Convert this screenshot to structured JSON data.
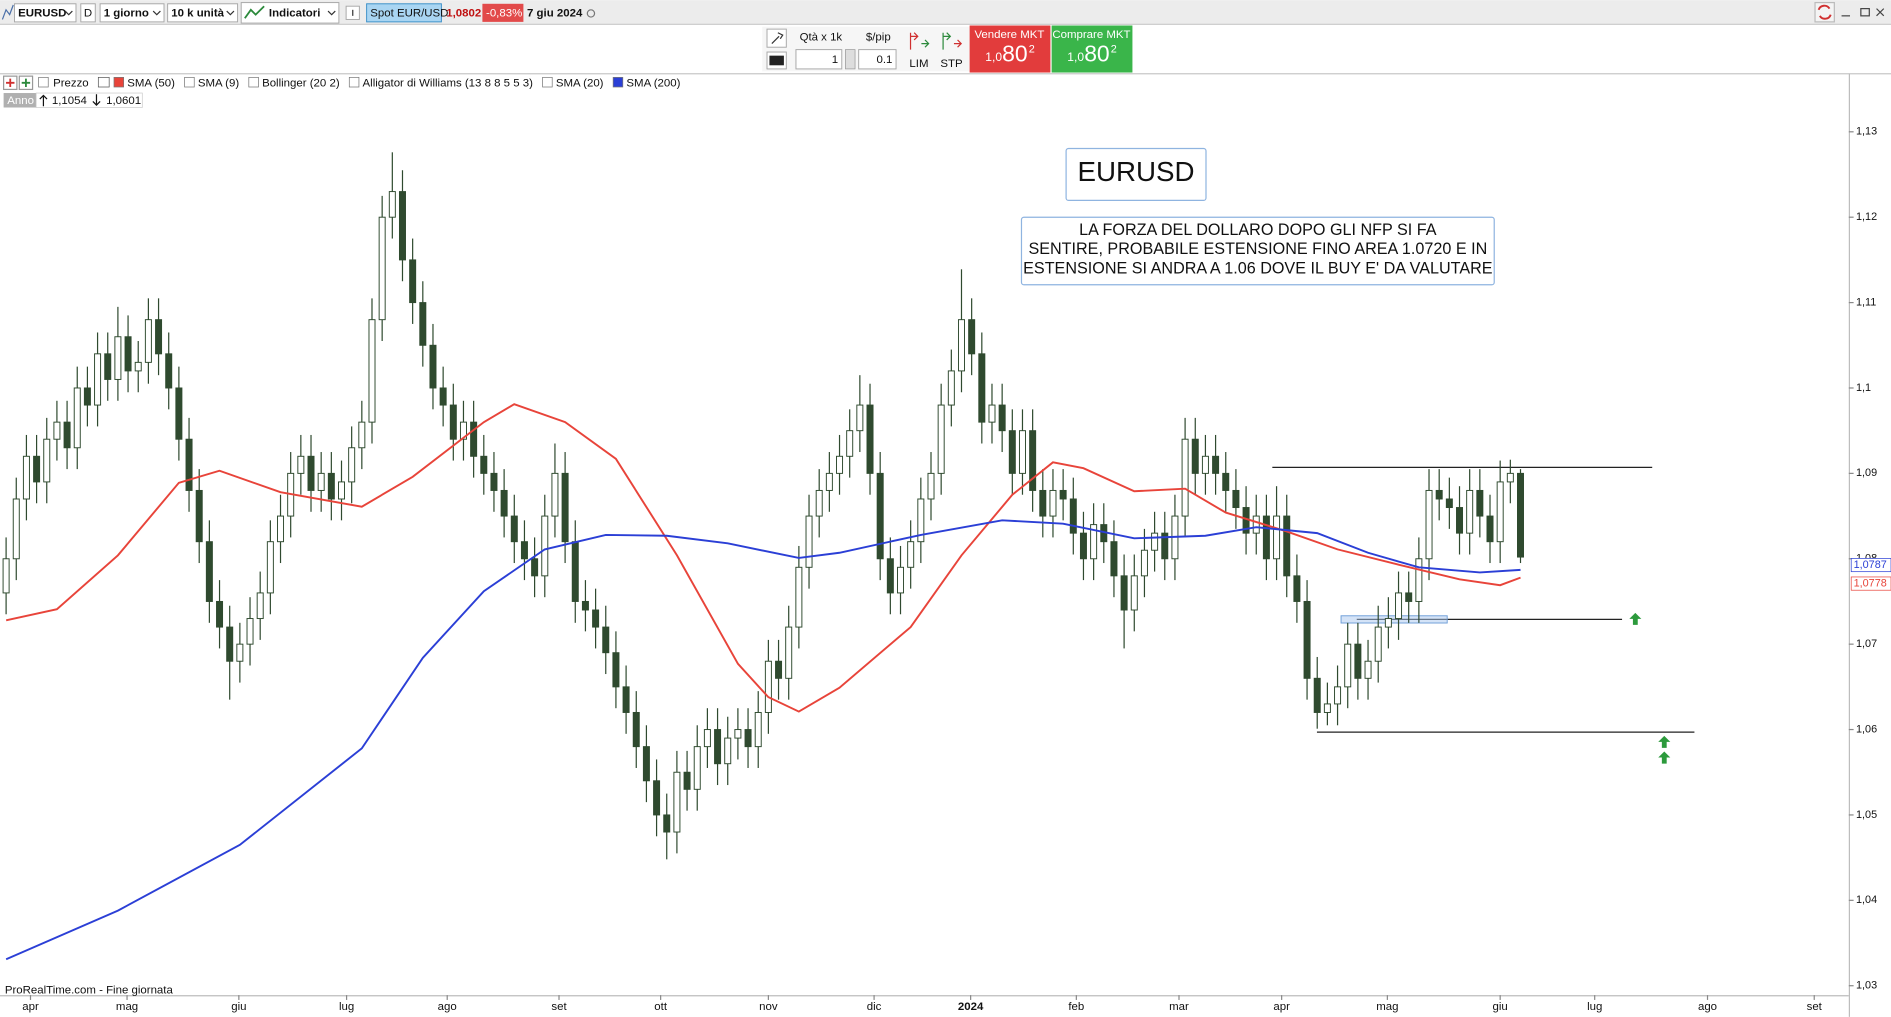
{
  "toolbar": {
    "symbol": "EURUSD",
    "period_code": "D",
    "timeframe": "1 giorno",
    "quantity": "10 k unità",
    "indicators_button": "Indicatori",
    "instrument": "Spot EUR/USD",
    "last_price": "1,0802",
    "change": "-0,83%",
    "date": "7 giu 2024"
  },
  "order_panel": {
    "qty_label": "Qtà x 1k",
    "pip_label": "$/pip",
    "qty": "1",
    "pip": "0.1",
    "limit": "LIM",
    "stop": "STP",
    "sell_label": "Vendere MKT",
    "sell_price": [
      "1,0",
      "80",
      "2"
    ],
    "buy_label": "Comprare MKT",
    "buy_price": [
      "1,0",
      "80",
      "2"
    ]
  },
  "chart_data": {
    "type": "candlestick",
    "price_label": "Prezzo",
    "period_label": "Anno",
    "period_high": "1,1054",
    "period_low": "1,0601",
    "annotation_title": "EURUSD",
    "annotation_text": [
      "LA FORZA DEL DOLLARO DOPO GLI NFP SI FA",
      "SENTIRE, PROBABILE ESTENSIONE FINO AREA 1.0720 E IN",
      "ESTENSIONE SI ANDRA A 1.06 DOVE IL BUY E' DA VALUTARE"
    ],
    "source": "ProRealTime.com - Fine giornata",
    "candle_color": {
      "up": "#ffffff",
      "down": "#2f4a2f",
      "wick": "#2f4a2f"
    },
    "ohlc": [
      [
        1.076,
        1.0825,
        1.0735,
        1.08
      ],
      [
        1.08,
        1.0895,
        1.0775,
        1.087
      ],
      [
        1.087,
        1.0945,
        1.0845,
        1.092
      ],
      [
        1.092,
        1.0945,
        1.0865,
        1.089
      ],
      [
        1.089,
        1.0965,
        1.0865,
        1.094
      ],
      [
        1.094,
        1.0985,
        1.0915,
        1.096
      ],
      [
        1.096,
        1.0985,
        1.0905,
        1.093
      ],
      [
        1.093,
        1.1025,
        1.0905,
        1.1
      ],
      [
        1.1,
        1.1025,
        1.0955,
        1.098
      ],
      [
        1.098,
        1.1065,
        1.0955,
        1.104
      ],
      [
        1.104,
        1.1065,
        1.0985,
        1.101
      ],
      [
        1.101,
        1.1095,
        1.0985,
        1.106
      ],
      [
        1.106,
        1.1085,
        1.0995,
        1.102
      ],
      [
        1.102,
        1.1055,
        1.0995,
        1.103
      ],
      [
        1.103,
        1.1105,
        1.1005,
        1.108
      ],
      [
        1.108,
        1.1105,
        1.1015,
        1.104
      ],
      [
        1.104,
        1.1065,
        1.0975,
        1.1
      ],
      [
        1.1,
        1.1025,
        1.0915,
        1.094
      ],
      [
        1.094,
        1.0965,
        1.0855,
        1.088
      ],
      [
        1.088,
        1.0905,
        1.0795,
        1.082
      ],
      [
        1.082,
        1.0845,
        1.0725,
        1.075
      ],
      [
        1.075,
        1.0775,
        1.0695,
        1.072
      ],
      [
        1.072,
        1.0745,
        1.0635,
        1.068
      ],
      [
        1.068,
        1.0725,
        1.0655,
        1.07
      ],
      [
        1.07,
        1.0755,
        1.0675,
        1.073
      ],
      [
        1.073,
        1.0785,
        1.0705,
        1.076
      ],
      [
        1.076,
        1.0845,
        1.0735,
        1.082
      ],
      [
        1.082,
        1.0875,
        1.0795,
        1.085
      ],
      [
        1.085,
        1.0925,
        1.0825,
        1.09
      ],
      [
        1.09,
        1.0945,
        1.0875,
        1.092
      ],
      [
        1.092,
        1.0945,
        1.0855,
        1.088
      ],
      [
        1.088,
        1.0925,
        1.0855,
        1.09
      ],
      [
        1.09,
        1.0925,
        1.0845,
        1.087
      ],
      [
        1.087,
        1.0915,
        1.0845,
        1.089
      ],
      [
        1.089,
        1.0955,
        1.0865,
        1.093
      ],
      [
        1.093,
        1.0985,
        1.0905,
        1.096
      ],
      [
        1.096,
        1.1105,
        1.0935,
        1.108
      ],
      [
        1.108,
        1.1225,
        1.1055,
        1.12
      ],
      [
        1.12,
        1.1276,
        1.1175,
        1.123
      ],
      [
        1.123,
        1.1255,
        1.1125,
        1.115
      ],
      [
        1.115,
        1.1175,
        1.1075,
        1.11
      ],
      [
        1.11,
        1.1125,
        1.1025,
        1.105
      ],
      [
        1.105,
        1.1075,
        1.0975,
        1.1
      ],
      [
        1.1,
        1.1025,
        1.0955,
        1.098
      ],
      [
        1.098,
        1.1005,
        1.0915,
        1.094
      ],
      [
        1.094,
        1.0985,
        1.0915,
        1.096
      ],
      [
        1.096,
        1.0985,
        1.0895,
        1.092
      ],
      [
        1.092,
        1.0945,
        1.0875,
        1.09
      ],
      [
        1.09,
        1.0925,
        1.0855,
        1.088
      ],
      [
        1.088,
        1.0905,
        1.0825,
        1.085
      ],
      [
        1.085,
        1.0875,
        1.0795,
        1.082
      ],
      [
        1.082,
        1.0845,
        1.0775,
        1.08
      ],
      [
        1.08,
        1.0825,
        1.0755,
        1.078
      ],
      [
        1.078,
        1.0875,
        1.0755,
        1.085
      ],
      [
        1.085,
        1.0935,
        1.0825,
        1.09
      ],
      [
        1.09,
        1.0925,
        1.0795,
        1.082
      ],
      [
        1.082,
        1.0845,
        1.0725,
        1.075
      ],
      [
        1.075,
        1.0775,
        1.0715,
        1.074
      ],
      [
        1.074,
        1.0765,
        1.0695,
        1.072
      ],
      [
        1.072,
        1.0745,
        1.0665,
        1.069
      ],
      [
        1.069,
        1.0715,
        1.0625,
        1.065
      ],
      [
        1.065,
        1.0675,
        1.0595,
        1.062
      ],
      [
        1.062,
        1.0645,
        1.0555,
        1.058
      ],
      [
        1.058,
        1.0605,
        1.0515,
        1.054
      ],
      [
        1.054,
        1.0565,
        1.0475,
        1.05
      ],
      [
        1.05,
        1.0525,
        1.0448,
        1.048
      ],
      [
        1.048,
        1.0575,
        1.0455,
        1.055
      ],
      [
        1.055,
        1.0575,
        1.0505,
        1.053
      ],
      [
        1.053,
        1.0605,
        1.0505,
        1.058
      ],
      [
        1.058,
        1.0625,
        1.0555,
        1.06
      ],
      [
        1.06,
        1.0625,
        1.0535,
        1.056
      ],
      [
        1.056,
        1.0615,
        1.0535,
        1.059
      ],
      [
        1.059,
        1.0625,
        1.0565,
        1.06
      ],
      [
        1.06,
        1.0625,
        1.0555,
        1.058
      ],
      [
        1.058,
        1.0645,
        1.0555,
        1.062
      ],
      [
        1.062,
        1.0705,
        1.0595,
        1.068
      ],
      [
        1.068,
        1.0705,
        1.0635,
        1.066
      ],
      [
        1.066,
        1.0745,
        1.0635,
        1.072
      ],
      [
        1.072,
        1.0815,
        1.0695,
        1.079
      ],
      [
        1.079,
        1.0875,
        1.0765,
        1.085
      ],
      [
        1.085,
        1.0905,
        1.0825,
        1.088
      ],
      [
        1.088,
        1.0925,
        1.0855,
        1.09
      ],
      [
        1.09,
        1.0945,
        1.0875,
        1.092
      ],
      [
        1.092,
        1.0975,
        1.0895,
        1.095
      ],
      [
        1.095,
        1.1015,
        1.0925,
        1.098
      ],
      [
        1.098,
        1.1005,
        1.0875,
        1.09
      ],
      [
        1.09,
        1.0925,
        1.0775,
        1.08
      ],
      [
        1.08,
        1.0825,
        1.0735,
        1.076
      ],
      [
        1.076,
        1.0815,
        1.0735,
        1.079
      ],
      [
        1.079,
        1.0845,
        1.0765,
        1.082
      ],
      [
        1.082,
        1.0895,
        1.0795,
        1.087
      ],
      [
        1.087,
        1.0925,
        1.0845,
        1.09
      ],
      [
        1.09,
        1.1005,
        1.0875,
        1.098
      ],
      [
        1.098,
        1.1045,
        1.0955,
        1.102
      ],
      [
        1.102,
        1.1139,
        1.0995,
        1.108
      ],
      [
        1.108,
        1.1105,
        1.1015,
        1.104
      ],
      [
        1.104,
        1.1065,
        1.0935,
        1.096
      ],
      [
        1.096,
        1.1005,
        1.0935,
        1.098
      ],
      [
        1.098,
        1.1005,
        1.0925,
        1.095
      ],
      [
        1.095,
        1.0975,
        1.0875,
        1.09
      ],
      [
        1.09,
        1.0975,
        1.0875,
        1.095
      ],
      [
        1.095,
        1.0975,
        1.0855,
        1.088
      ],
      [
        1.088,
        1.0905,
        1.0825,
        1.085
      ],
      [
        1.085,
        1.0905,
        1.0825,
        1.088
      ],
      [
        1.088,
        1.0905,
        1.0845,
        1.087
      ],
      [
        1.087,
        1.0895,
        1.0805,
        1.083
      ],
      [
        1.083,
        1.0855,
        1.0775,
        1.08
      ],
      [
        1.08,
        1.0865,
        1.0775,
        1.084
      ],
      [
        1.084,
        1.0865,
        1.0795,
        1.082
      ],
      [
        1.082,
        1.0845,
        1.0755,
        1.078
      ],
      [
        1.078,
        1.0805,
        1.0695,
        1.074
      ],
      [
        1.074,
        1.0805,
        1.0715,
        1.078
      ],
      [
        1.078,
        1.0835,
        1.0755,
        1.081
      ],
      [
        1.081,
        1.0855,
        1.0785,
        1.083
      ],
      [
        1.083,
        1.0855,
        1.0775,
        1.08
      ],
      [
        1.08,
        1.0875,
        1.0775,
        1.085
      ],
      [
        1.085,
        1.0965,
        1.0825,
        1.094
      ],
      [
        1.094,
        1.0965,
        1.0875,
        1.09
      ],
      [
        1.09,
        1.0945,
        1.0875,
        1.092
      ],
      [
        1.092,
        1.0945,
        1.0875,
        1.09
      ],
      [
        1.09,
        1.0925,
        1.0855,
        1.088
      ],
      [
        1.088,
        1.0905,
        1.0835,
        1.086
      ],
      [
        1.086,
        1.0885,
        1.0805,
        1.083
      ],
      [
        1.083,
        1.0875,
        1.0805,
        1.085
      ],
      [
        1.085,
        1.0875,
        1.0775,
        1.08
      ],
      [
        1.08,
        1.0885,
        1.0775,
        1.085
      ],
      [
        1.085,
        1.0875,
        1.0755,
        1.078
      ],
      [
        1.078,
        1.0805,
        1.0725,
        1.075
      ],
      [
        1.075,
        1.0775,
        1.0635,
        1.066
      ],
      [
        1.066,
        1.0685,
        1.0601,
        1.062
      ],
      [
        1.062,
        1.0655,
        1.0605,
        1.063
      ],
      [
        1.063,
        1.0675,
        1.0605,
        1.065
      ],
      [
        1.065,
        1.0725,
        1.0625,
        1.07
      ],
      [
        1.07,
        1.0725,
        1.0635,
        1.066
      ],
      [
        1.066,
        1.0705,
        1.0635,
        1.068
      ],
      [
        1.068,
        1.0745,
        1.0655,
        1.072
      ],
      [
        1.072,
        1.0755,
        1.0695,
        1.073
      ],
      [
        1.073,
        1.0785,
        1.0705,
        1.076
      ],
      [
        1.076,
        1.0785,
        1.0725,
        1.075
      ],
      [
        1.075,
        1.0825,
        1.0725,
        1.08
      ],
      [
        1.08,
        1.0905,
        1.0775,
        1.088
      ],
      [
        1.088,
        1.0905,
        1.0845,
        1.087
      ],
      [
        1.087,
        1.0895,
        1.0835,
        1.086
      ],
      [
        1.086,
        1.0885,
        1.0805,
        1.083
      ],
      [
        1.083,
        1.0905,
        1.0805,
        1.088
      ],
      [
        1.088,
        1.0905,
        1.0825,
        1.085
      ],
      [
        1.085,
        1.0875,
        1.0795,
        1.082
      ],
      [
        1.082,
        1.0915,
        1.0795,
        1.089
      ],
      [
        1.089,
        1.0916,
        1.0865,
        1.09
      ],
      [
        1.09,
        1.0905,
        1.0795,
        1.0802
      ]
    ],
    "series": [
      {
        "name": "SMA (50)",
        "color": "#e8443a",
        "last_label": "1,0778",
        "x": [
          0,
          5,
          11,
          17,
          21,
          27,
          35,
          40,
          47,
          50,
          55,
          60,
          66,
          72,
          75,
          78,
          82,
          89,
          94,
          99,
          103,
          106,
          111,
          116,
          120,
          126,
          131,
          137,
          143,
          147,
          149
        ],
        "values": [
          1.0728,
          1.0741,
          1.0804,
          1.0889,
          1.0903,
          1.0878,
          1.0861,
          1.0896,
          1.096,
          1.0981,
          1.096,
          1.0917,
          1.0804,
          1.0677,
          1.0638,
          1.0621,
          1.0649,
          1.072,
          1.0804,
          1.0875,
          1.0913,
          1.0906,
          1.0879,
          1.0882,
          1.0854,
          1.0832,
          1.0811,
          1.0793,
          1.0776,
          1.0769,
          1.0778
        ]
      },
      {
        "name": "SMA (200)",
        "color": "#2b3fd6",
        "last_label": "1,0787",
        "x": [
          0,
          11,
          23,
          35,
          41,
          47,
          53,
          59,
          65,
          71,
          78,
          82,
          90,
          98,
          104,
          111,
          118,
          123,
          129,
          134,
          139,
          145,
          149
        ],
        "values": [
          1.0331,
          1.0388,
          1.0465,
          1.0578,
          1.0684,
          1.0762,
          1.0811,
          1.0828,
          1.0827,
          1.0818,
          1.0801,
          1.0807,
          1.0828,
          1.0845,
          1.0841,
          1.0824,
          1.0827,
          1.0837,
          1.083,
          1.0807,
          1.079,
          1.0784,
          1.0787
        ]
      }
    ],
    "other_indicators": [
      "SMA (9)",
      "Bollinger (20 2)",
      "Alligator di Williams (13 8 8 5 5 3)",
      "SMA (20)"
    ],
    "levels": [
      1.0907,
      1.0729,
      1.0597
    ],
    "xlim": [
      -0.6,
      181.3
    ],
    "xticks": [
      {
        "value": 2.4,
        "label": "apr"
      },
      {
        "value": 11.9,
        "label": "mag"
      },
      {
        "value": 22.9,
        "label": "giu"
      },
      {
        "value": 33.5,
        "label": "lug"
      },
      {
        "value": 43.4,
        "label": "ago"
      },
      {
        "value": 54.4,
        "label": "set"
      },
      {
        "value": 64.4,
        "label": "ott"
      },
      {
        "value": 75,
        "label": "nov"
      },
      {
        "value": 85.4,
        "label": "dic"
      },
      {
        "value": 94.9,
        "label": "2024"
      },
      {
        "value": 105.3,
        "label": "feb"
      },
      {
        "value": 115.4,
        "label": "mar"
      },
      {
        "value": 125.5,
        "label": "apr"
      },
      {
        "value": 135.9,
        "label": "mag"
      },
      {
        "value": 147,
        "label": "giu"
      },
      {
        "value": 156.3,
        "label": "lug"
      },
      {
        "value": 167.4,
        "label": "ago"
      },
      {
        "value": 177.9,
        "label": "set"
      }
    ],
    "ylim": [
      1.0289,
      1.1368
    ],
    "yticks": [
      {
        "value": 1.03,
        "label": "1,03"
      },
      {
        "value": 1.04,
        "label": "1,04"
      },
      {
        "value": 1.05,
        "label": "1,05"
      },
      {
        "value": 1.06,
        "label": "1,06"
      },
      {
        "value": 1.07,
        "label": "1,07"
      },
      {
        "value": 1.08,
        "label": "1,08"
      },
      {
        "value": 1.09,
        "label": "1,09"
      },
      {
        "value": 1.1,
        "label": "1,1"
      },
      {
        "value": 1.11,
        "label": "1,11"
      },
      {
        "value": 1.12,
        "label": "1,12"
      },
      {
        "value": 1.13,
        "label": "1,13"
      }
    ],
    "grid": false
  }
}
